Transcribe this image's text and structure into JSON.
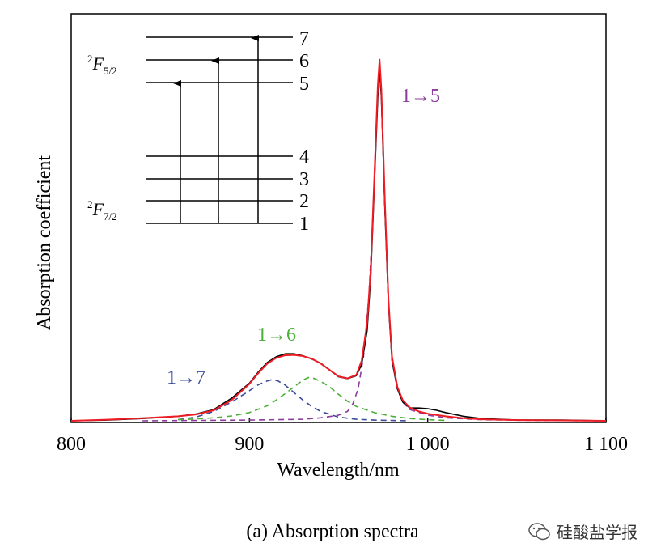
{
  "chart_data": {
    "type": "line",
    "title": "",
    "xlabel": "Wavelength/nm",
    "ylabel": "Absorption coefficient",
    "xlim": [
      800,
      1100
    ],
    "ylim": [
      0,
      1.0
    ],
    "x_ticks": [
      800,
      900,
      1000,
      1100
    ],
    "x_tick_labels": [
      "800",
      "900",
      "1 000",
      "1 100"
    ],
    "y_ticks_shown": false,
    "grid": false,
    "series": [
      {
        "role": "measured",
        "color": "#000000",
        "style": "solid",
        "points": [
          [
            800,
            0.0
          ],
          [
            820,
            0.002
          ],
          [
            840,
            0.006
          ],
          [
            860,
            0.012
          ],
          [
            870,
            0.018
          ],
          [
            880,
            0.03
          ],
          [
            890,
            0.06
          ],
          [
            900,
            0.1
          ],
          [
            905,
            0.13
          ],
          [
            910,
            0.155
          ],
          [
            915,
            0.17
          ],
          [
            920,
            0.178
          ],
          [
            925,
            0.178
          ],
          [
            930,
            0.173
          ],
          [
            935,
            0.164
          ],
          [
            940,
            0.153
          ],
          [
            945,
            0.135
          ],
          [
            950,
            0.117
          ],
          [
            955,
            0.112
          ],
          [
            960,
            0.12
          ],
          [
            963,
            0.15
          ],
          [
            966,
            0.24
          ],
          [
            968,
            0.38
          ],
          [
            970,
            0.62
          ],
          [
            972,
            0.86
          ],
          [
            973,
            0.93
          ],
          [
            974,
            0.86
          ],
          [
            976,
            0.56
          ],
          [
            978,
            0.31
          ],
          [
            980,
            0.16
          ],
          [
            983,
            0.085
          ],
          [
            986,
            0.05
          ],
          [
            990,
            0.034
          ],
          [
            995,
            0.034
          ],
          [
            1000,
            0.032
          ],
          [
            1005,
            0.028
          ],
          [
            1010,
            0.022
          ],
          [
            1020,
            0.012
          ],
          [
            1030,
            0.006
          ],
          [
            1050,
            0.002
          ],
          [
            1075,
            0.002
          ],
          [
            1100,
            0.0
          ]
        ]
      },
      {
        "role": "fit",
        "color": "#ee1c25",
        "style": "solid",
        "points": [
          [
            800,
            0.0
          ],
          [
            820,
            0.003
          ],
          [
            840,
            0.007
          ],
          [
            860,
            0.012
          ],
          [
            870,
            0.017
          ],
          [
            880,
            0.028
          ],
          [
            890,
            0.055
          ],
          [
            900,
            0.098
          ],
          [
            905,
            0.127
          ],
          [
            910,
            0.152
          ],
          [
            915,
            0.167
          ],
          [
            920,
            0.174
          ],
          [
            925,
            0.175
          ],
          [
            930,
            0.172
          ],
          [
            935,
            0.165
          ],
          [
            940,
            0.152
          ],
          [
            945,
            0.135
          ],
          [
            950,
            0.118
          ],
          [
            955,
            0.113
          ],
          [
            960,
            0.122
          ],
          [
            963,
            0.16
          ],
          [
            966,
            0.26
          ],
          [
            968,
            0.4
          ],
          [
            970,
            0.64
          ],
          [
            972,
            0.89
          ],
          [
            973,
            0.96
          ],
          [
            974,
            0.88
          ],
          [
            976,
            0.58
          ],
          [
            978,
            0.32
          ],
          [
            980,
            0.17
          ],
          [
            983,
            0.09
          ],
          [
            986,
            0.055
          ],
          [
            990,
            0.035
          ],
          [
            995,
            0.025
          ],
          [
            1000,
            0.019
          ],
          [
            1010,
            0.012
          ],
          [
            1020,
            0.007
          ],
          [
            1030,
            0.004
          ],
          [
            1050,
            0.002
          ],
          [
            1075,
            0.001
          ],
          [
            1100,
            0.0
          ]
        ]
      },
      {
        "role": "component",
        "label": "1→7",
        "color": "#3a4a9c",
        "style": "dashed",
        "points": [
          [
            860,
            0.003
          ],
          [
            870,
            0.01
          ],
          [
            880,
            0.025
          ],
          [
            890,
            0.05
          ],
          [
            900,
            0.08
          ],
          [
            905,
            0.096
          ],
          [
            910,
            0.106
          ],
          [
            913,
            0.11
          ],
          [
            916,
            0.106
          ],
          [
            920,
            0.095
          ],
          [
            925,
            0.075
          ],
          [
            930,
            0.055
          ],
          [
            935,
            0.038
          ],
          [
            940,
            0.025
          ],
          [
            950,
            0.01
          ],
          [
            960,
            0.004
          ],
          [
            970,
            0.002
          ],
          [
            990,
            0.0
          ]
        ]
      },
      {
        "role": "component",
        "label": "1→6",
        "color": "#4caf38",
        "style": "dashed",
        "points": [
          [
            860,
            0.003
          ],
          [
            870,
            0.005
          ],
          [
            880,
            0.008
          ],
          [
            890,
            0.013
          ],
          [
            900,
            0.022
          ],
          [
            910,
            0.04
          ],
          [
            915,
            0.055
          ],
          [
            920,
            0.072
          ],
          [
            925,
            0.09
          ],
          [
            930,
            0.108
          ],
          [
            933,
            0.115
          ],
          [
            936,
            0.113
          ],
          [
            940,
            0.105
          ],
          [
            945,
            0.09
          ],
          [
            950,
            0.07
          ],
          [
            955,
            0.052
          ],
          [
            960,
            0.038
          ],
          [
            970,
            0.022
          ],
          [
            980,
            0.012
          ],
          [
            990,
            0.006
          ],
          [
            1000,
            0.003
          ],
          [
            1010,
            0.001
          ]
        ]
      },
      {
        "role": "component",
        "label": "1→5",
        "color": "#8c3a9c",
        "style": "dashed",
        "points": [
          [
            840,
            0.0
          ],
          [
            900,
            0.002
          ],
          [
            930,
            0.004
          ],
          [
            940,
            0.008
          ],
          [
            950,
            0.015
          ],
          [
            955,
            0.025
          ],
          [
            958,
            0.045
          ],
          [
            961,
            0.085
          ],
          [
            964,
            0.17
          ],
          [
            967,
            0.33
          ],
          [
            969,
            0.52
          ],
          [
            971,
            0.75
          ],
          [
            972,
            0.86
          ],
          [
            973,
            0.93
          ],
          [
            974,
            0.86
          ],
          [
            976,
            0.56
          ],
          [
            978,
            0.31
          ],
          [
            980,
            0.16
          ],
          [
            983,
            0.085
          ],
          [
            986,
            0.05
          ],
          [
            990,
            0.03
          ],
          [
            1000,
            0.015
          ],
          [
            1010,
            0.008
          ],
          [
            1030,
            0.003
          ],
          [
            1060,
            0.001
          ],
          [
            1100,
            0.0
          ]
        ]
      }
    ],
    "annotations": [
      {
        "text": "1→5",
        "color": "#8c3a9c"
      },
      {
        "text": "1→6",
        "color": "#4caf38"
      },
      {
        "text": "1→7",
        "color": "#3a4a9c"
      }
    ],
    "inset": {
      "upper_manifold": {
        "sup": "2",
        "base": "F",
        "sub": "5/2"
      },
      "lower_manifold": {
        "sup": "2",
        "base": "F",
        "sub": "7/2"
      },
      "level_labels": [
        "7",
        "6",
        "5",
        "4",
        "3",
        "2",
        "1"
      ],
      "transitions": [
        [
          1,
          5
        ],
        [
          1,
          6
        ],
        [
          1,
          7
        ]
      ]
    }
  },
  "caption": "(a) Absorption spectra",
  "watermark": {
    "text": "硅酸盐学报",
    "icon": "wechat-icon"
  }
}
